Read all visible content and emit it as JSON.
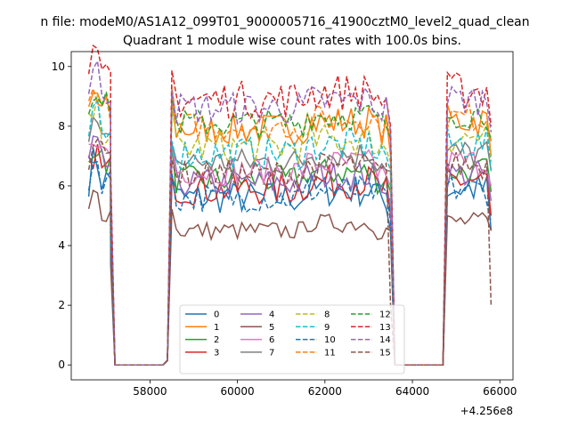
{
  "figure": {
    "suptitle": "n file: modeM0/AS1A12_099T01_9000005716_41900cztM0_level2_quad_clean",
    "x_offset_label": "+4.256e8"
  },
  "chart_data": {
    "type": "line",
    "title": "Quadrant 1 module wise count rates with 100.0s bins.",
    "xlabel": "",
    "ylabel": "",
    "xlim": [
      56200,
      66300
    ],
    "ylim": [
      -0.5,
      10.5
    ],
    "x_offset": 425600000,
    "x_ticks": [
      58000,
      60000,
      62000,
      64000,
      66000
    ],
    "y_ticks": [
      0,
      2,
      4,
      6,
      8,
      10
    ],
    "legend": {
      "placement": "lower-center",
      "columns": 4
    },
    "segments": [
      {
        "x_start": 56600,
        "x_end": 57100,
        "dx": 100
      },
      {
        "x_start": 58500,
        "x_end": 63500,
        "dx": 100
      },
      {
        "x_start": 64800,
        "x_end": 65800,
        "dx": 100
      }
    ],
    "gap_points": [
      [
        57200,
        0
      ],
      [
        57300,
        0
      ],
      [
        57400,
        0
      ],
      [
        57500,
        0
      ],
      [
        57600,
        0
      ],
      [
        57700,
        0
      ],
      [
        57800,
        0
      ],
      [
        57900,
        0
      ],
      [
        58000,
        0
      ],
      [
        58100,
        0
      ],
      [
        58200,
        0
      ],
      [
        58300,
        0
      ],
      [
        58400,
        0.15
      ],
      [
        63600,
        0
      ],
      [
        63700,
        0
      ],
      [
        63800,
        0
      ],
      [
        63900,
        0
      ],
      [
        64000,
        0
      ],
      [
        64100,
        0
      ],
      [
        64200,
        0
      ],
      [
        64300,
        0
      ],
      [
        64400,
        0
      ],
      [
        64500,
        0
      ],
      [
        64600,
        0
      ],
      [
        64700,
        0
      ]
    ],
    "series": [
      {
        "name": "0",
        "color": "#1f77b4",
        "dash": "solid",
        "level": 5.6,
        "amp": 0.35,
        "drop": 4.5
      },
      {
        "name": "1",
        "color": "#ff7f0e",
        "dash": "solid",
        "level": 7.9,
        "amp": 0.35,
        "drop": 7.0
      },
      {
        "name": "2",
        "color": "#2ca02c",
        "dash": "solid",
        "level": 6.2,
        "amp": 0.3,
        "drop": 5.8
      },
      {
        "name": "3",
        "color": "#d62728",
        "dash": "solid",
        "level": 5.9,
        "amp": 0.35,
        "drop": 5.0
      },
      {
        "name": "4",
        "color": "#9467bd",
        "dash": "solid",
        "level": 6.1,
        "amp": 0.3,
        "drop": 5.5
      },
      {
        "name": "5",
        "color": "#8c564b",
        "dash": "solid",
        "level": 4.5,
        "amp": 0.2,
        "drop": 4.5
      },
      {
        "name": "6",
        "color": "#e377c2",
        "dash": "solid",
        "level": 6.5,
        "amp": 0.3,
        "drop": 6.0
      },
      {
        "name": "7",
        "color": "#7f7f7f",
        "dash": "solid",
        "level": 6.8,
        "amp": 0.3,
        "drop": 6.5
      },
      {
        "name": "8",
        "color": "#bcbd22",
        "dash": "dashed",
        "level": 7.3,
        "amp": 0.35,
        "drop": 6.8
      },
      {
        "name": "9",
        "color": "#17becf",
        "dash": "dashed",
        "level": 7.1,
        "amp": 0.35,
        "drop": 6.5
      },
      {
        "name": "10",
        "color": "#1f77b4",
        "dash": "dashed",
        "level": 5.6,
        "amp": 0.3,
        "drop": 4.8
      },
      {
        "name": "11",
        "color": "#ff7f0e",
        "dash": "dashed",
        "level": 8.0,
        "amp": 0.3,
        "drop": 7.5
      },
      {
        "name": "12",
        "color": "#2ca02c",
        "dash": "dashed",
        "level": 8.1,
        "amp": 0.3,
        "drop": 7.6
      },
      {
        "name": "13",
        "color": "#d62728",
        "dash": "dashed",
        "level": 8.9,
        "amp": 0.4,
        "drop": 8.0
      },
      {
        "name": "14",
        "color": "#9467bd",
        "dash": "dashed",
        "level": 8.6,
        "amp": 0.35,
        "drop": 7.8
      },
      {
        "name": "15",
        "color": "#8c564b",
        "dash": "dashed",
        "level": 6.4,
        "amp": 0.3,
        "drop": 2.0
      }
    ]
  }
}
